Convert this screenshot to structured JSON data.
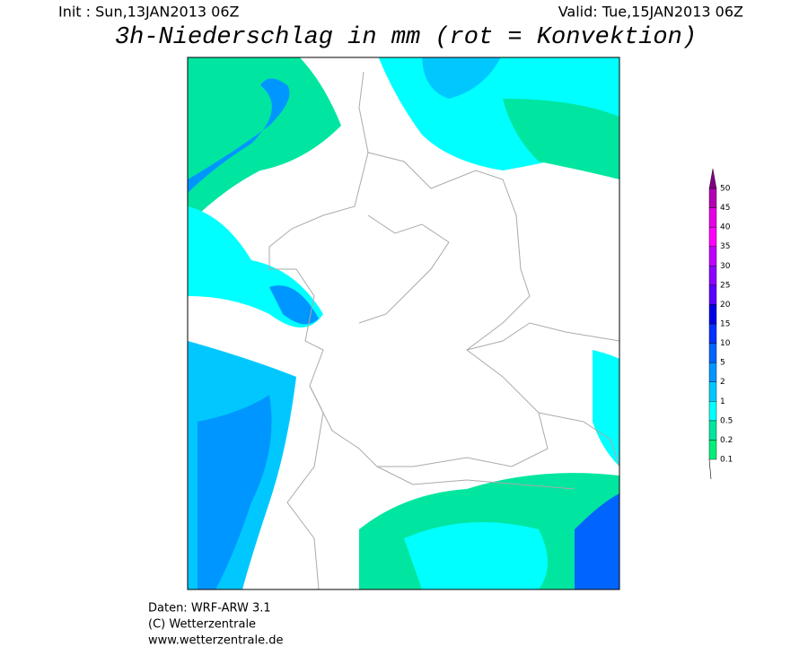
{
  "header": {
    "init": "Init : Sun,13JAN2013 06Z",
    "valid": "Valid: Tue,15JAN2013 06Z",
    "title": "3h-Niederschlag in mm (rot = Konvektion)"
  },
  "legend": {
    "labels": [
      "0.1",
      "0.2",
      "0.5",
      "1",
      "2",
      "5",
      "10",
      "15",
      "20",
      "25",
      "30",
      "35",
      "40",
      "45",
      "50"
    ],
    "colors": [
      "#00f078",
      "#00e6a0",
      "#00ffff",
      "#00c8ff",
      "#0096ff",
      "#0064ff",
      "#0032ff",
      "#0000e6",
      "#5a00ff",
      "#8c00ff",
      "#be00ff",
      "#ff00ff",
      "#e600e6",
      "#b400b4",
      "#800080"
    ]
  },
  "footer": {
    "lines": [
      "Daten: WRF-ARW 3.1",
      "(C) Wetterzentrale",
      "www.wetterzentrale.de"
    ]
  }
}
